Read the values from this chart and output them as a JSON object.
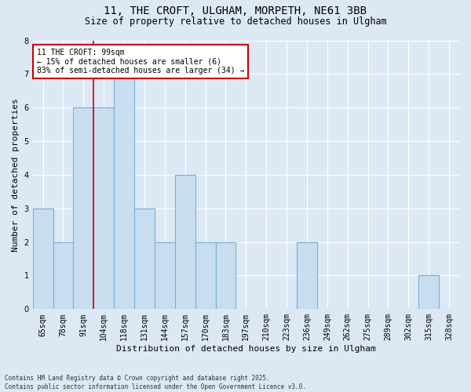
{
  "title_line1": "11, THE CROFT, ULGHAM, MORPETH, NE61 3BB",
  "title_line2": "Size of property relative to detached houses in Ulgham",
  "xlabel": "Distribution of detached houses by size in Ulgham",
  "ylabel": "Number of detached properties",
  "categories": [
    "65sqm",
    "78sqm",
    "91sqm",
    "104sqm",
    "118sqm",
    "131sqm",
    "144sqm",
    "157sqm",
    "170sqm",
    "183sqm",
    "197sqm",
    "210sqm",
    "223sqm",
    "236sqm",
    "249sqm",
    "262sqm",
    "275sqm",
    "289sqm",
    "302sqm",
    "315sqm",
    "328sqm"
  ],
  "values": [
    3,
    2,
    6,
    6,
    7,
    3,
    2,
    4,
    2,
    2,
    0,
    0,
    0,
    2,
    0,
    0,
    0,
    0,
    0,
    1,
    0
  ],
  "bar_color": "#c9ddf0",
  "bar_edge_color": "#7bafd4",
  "property_index": 2,
  "property_line_color": "#cc0000",
  "ylim": [
    0,
    8
  ],
  "yticks": [
    0,
    1,
    2,
    3,
    4,
    5,
    6,
    7,
    8
  ],
  "legend_title": "11 THE CROFT: 99sqm",
  "legend_line1": "← 15% of detached houses are smaller (6)",
  "legend_line2": "83% of semi-detached houses are larger (34) →",
  "legend_box_color": "#ffffff",
  "legend_box_edge_color": "#cc0000",
  "footnote_line1": "Contains HM Land Registry data © Crown copyright and database right 2025.",
  "footnote_line2": "Contains public sector information licensed under the Open Government Licence v3.0.",
  "background_color": "#dde8f5",
  "grid_color": "#ffffff",
  "title_fontsize": 10,
  "subtitle_fontsize": 8.5,
  "axis_label_fontsize": 8,
  "tick_fontsize": 7,
  "annot_fontsize": 7,
  "footnote_fontsize": 5.5
}
